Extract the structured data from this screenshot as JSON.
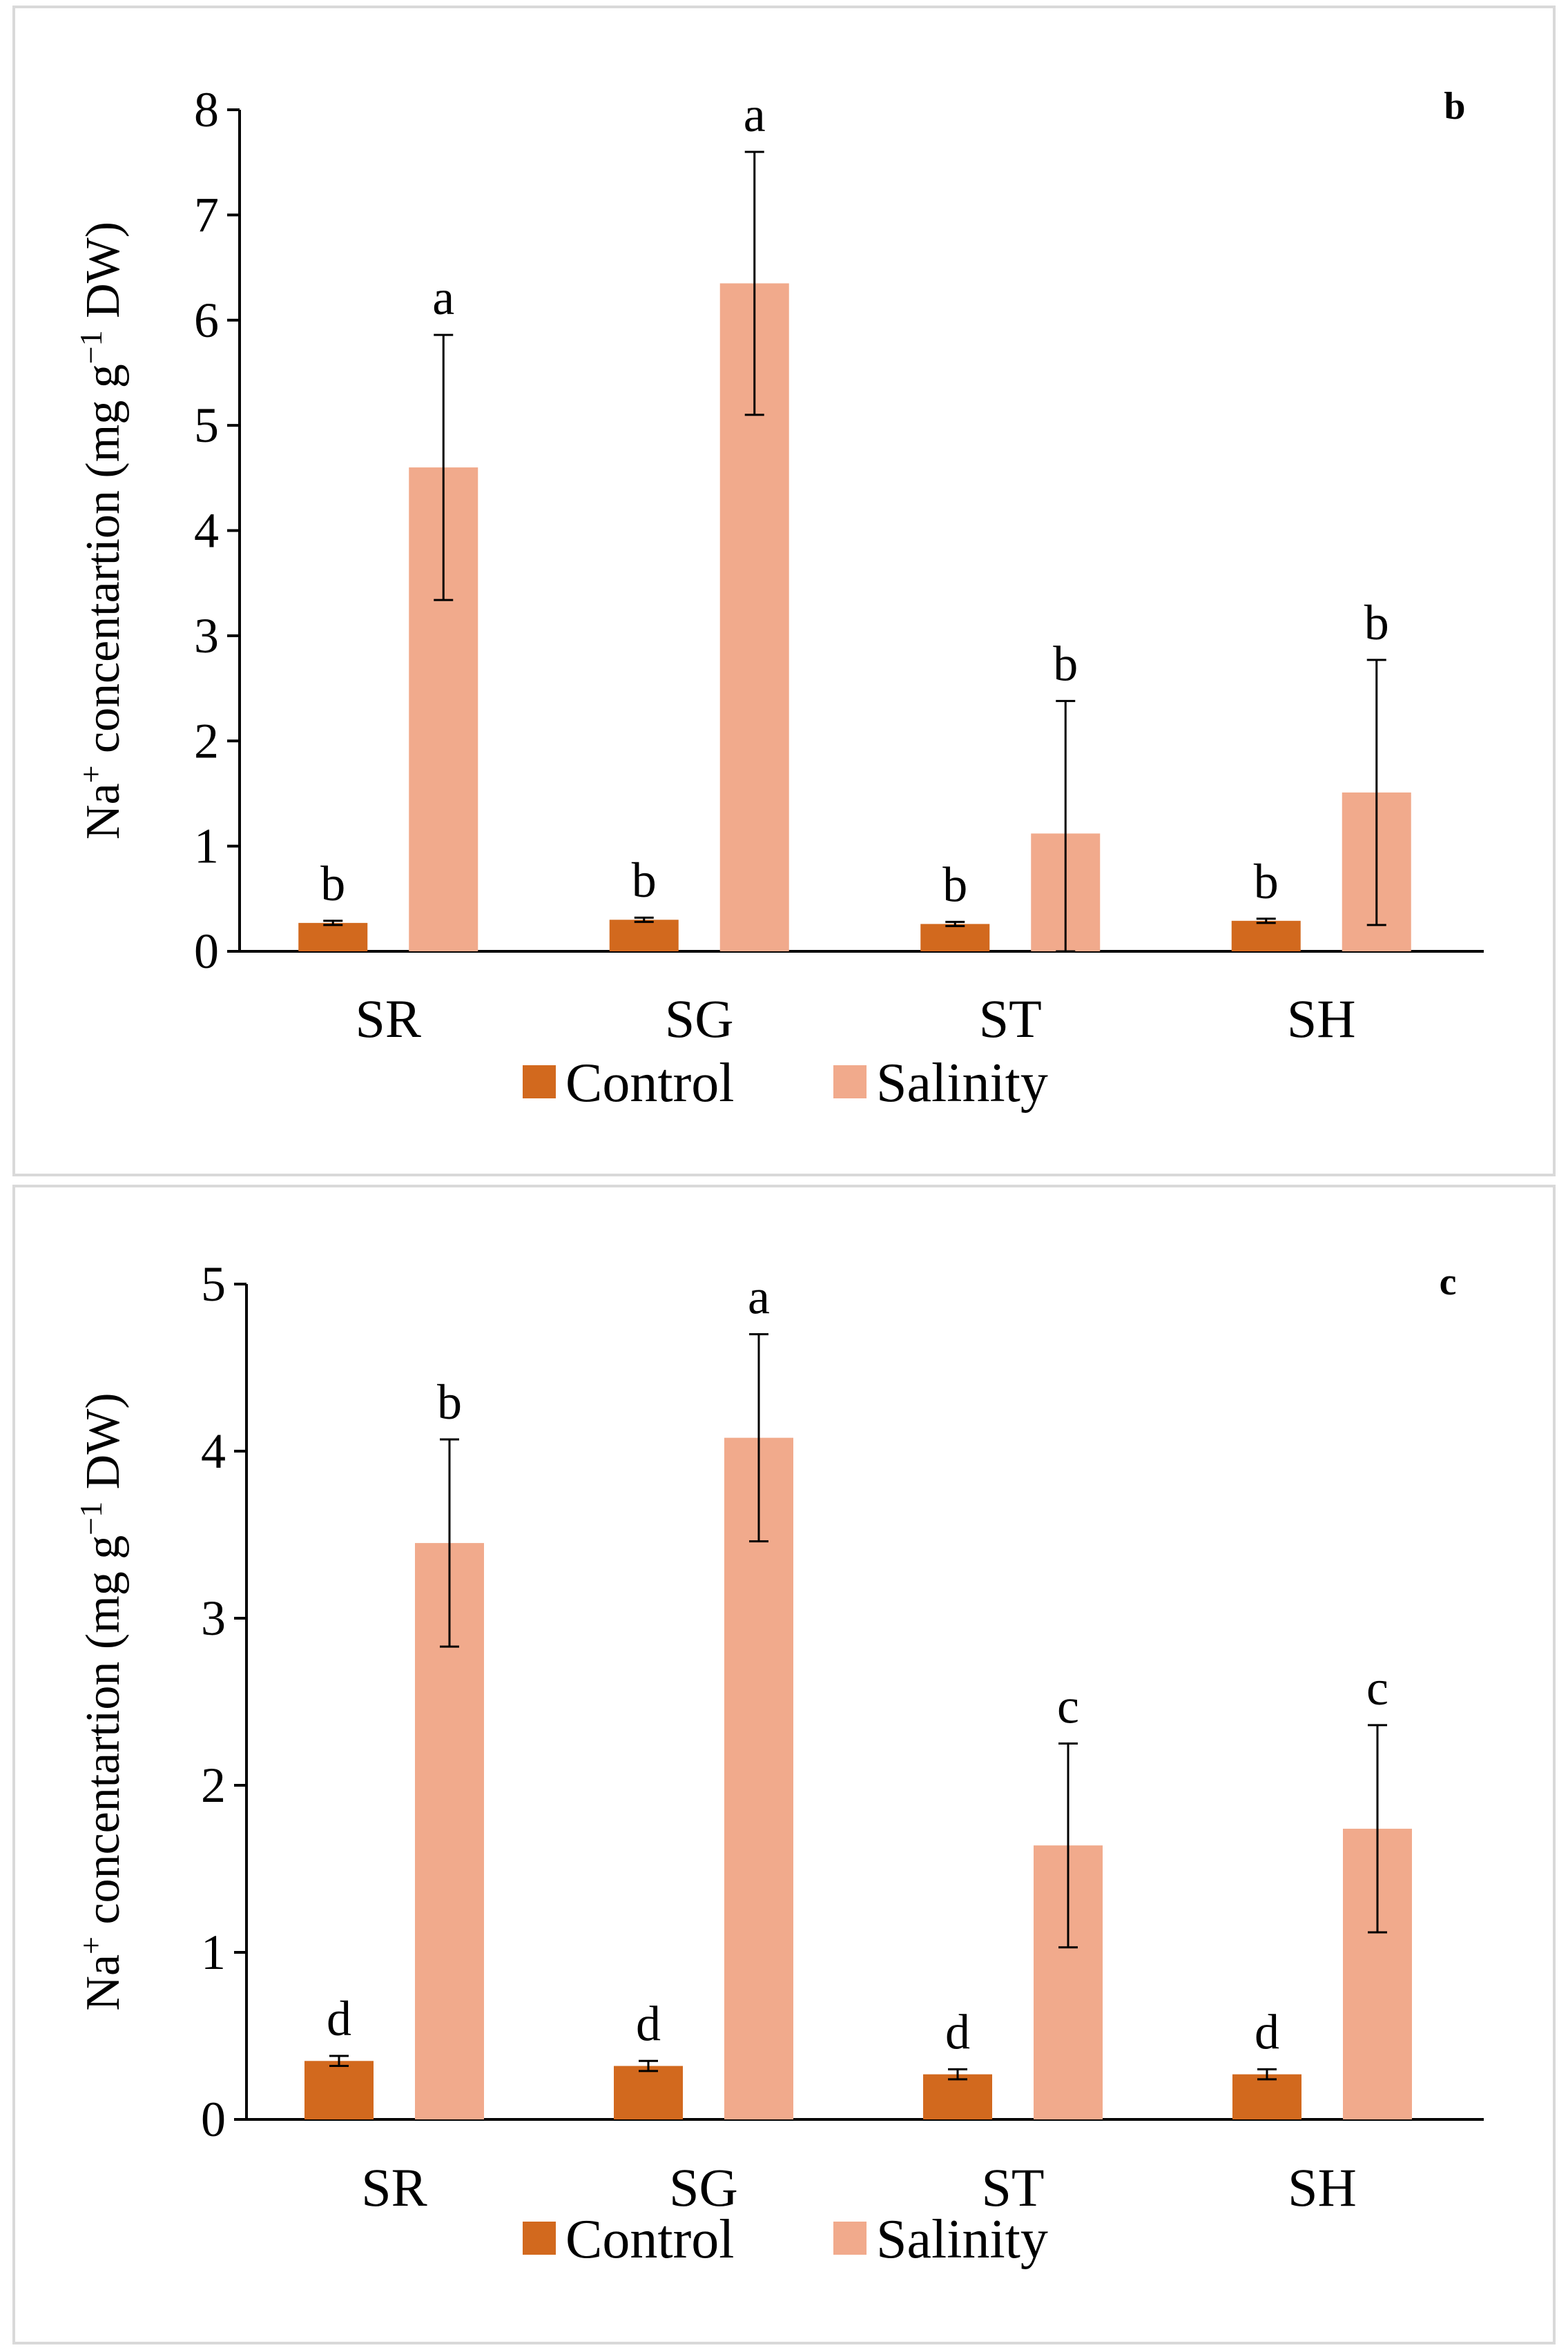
{
  "chart_data": [
    {
      "type": "bar",
      "panel_label": "b",
      "categories": [
        "SR",
        "SG",
        "ST",
        "SH"
      ],
      "series": [
        {
          "name": "Control",
          "color": "#d2691e",
          "values": [
            0.27,
            0.3,
            0.26,
            0.29
          ],
          "errors": [
            0.02,
            0.02,
            0.02,
            0.02
          ],
          "labels": [
            "b",
            "b",
            "b",
            "b"
          ]
        },
        {
          "name": "Salinity",
          "color": "#f1aa8c",
          "values": [
            4.6,
            6.35,
            1.12,
            1.51
          ],
          "errors": [
            1.26,
            1.25,
            1.26,
            1.26
          ],
          "labels": [
            "a",
            "a",
            "b",
            "b"
          ]
        }
      ],
      "ylabel_prefix": "Na",
      "ylabel_sup": "+",
      "ylabel_main": " concentartion (mg g",
      "ylabel_sup2": "−1",
      "ylabel_suffix": " DW)",
      "ylim": [
        0,
        8
      ],
      "yticks": [
        "0",
        "1",
        "2",
        "3",
        "4",
        "5",
        "6",
        "7",
        "8"
      ],
      "legend_position": "bottom"
    },
    {
      "type": "bar",
      "panel_label": "c",
      "categories": [
        "SR",
        "SG",
        "ST",
        "SH"
      ],
      "series": [
        {
          "name": "Control",
          "color": "#d2691e",
          "values": [
            0.35,
            0.32,
            0.27,
            0.27
          ],
          "errors": [
            0.03,
            0.03,
            0.03,
            0.03
          ],
          "labels": [
            "d",
            "d",
            "d",
            "d"
          ]
        },
        {
          "name": "Salinity",
          "color": "#f1aa8c",
          "values": [
            3.45,
            4.08,
            1.64,
            1.74
          ],
          "errors": [
            0.62,
            0.62,
            0.61,
            0.62
          ],
          "labels": [
            "b",
            "a",
            "c",
            "c"
          ]
        }
      ],
      "ylabel_prefix": "Na",
      "ylabel_sup": "+",
      "ylabel_main": " concentartion (mg g",
      "ylabel_sup2": "−1",
      "ylabel_suffix": "  DW)",
      "ylim": [
        0,
        5
      ],
      "yticks": [
        "0",
        "1",
        "2",
        "3",
        "4",
        "5"
      ],
      "legend_position": "bottom"
    }
  ]
}
